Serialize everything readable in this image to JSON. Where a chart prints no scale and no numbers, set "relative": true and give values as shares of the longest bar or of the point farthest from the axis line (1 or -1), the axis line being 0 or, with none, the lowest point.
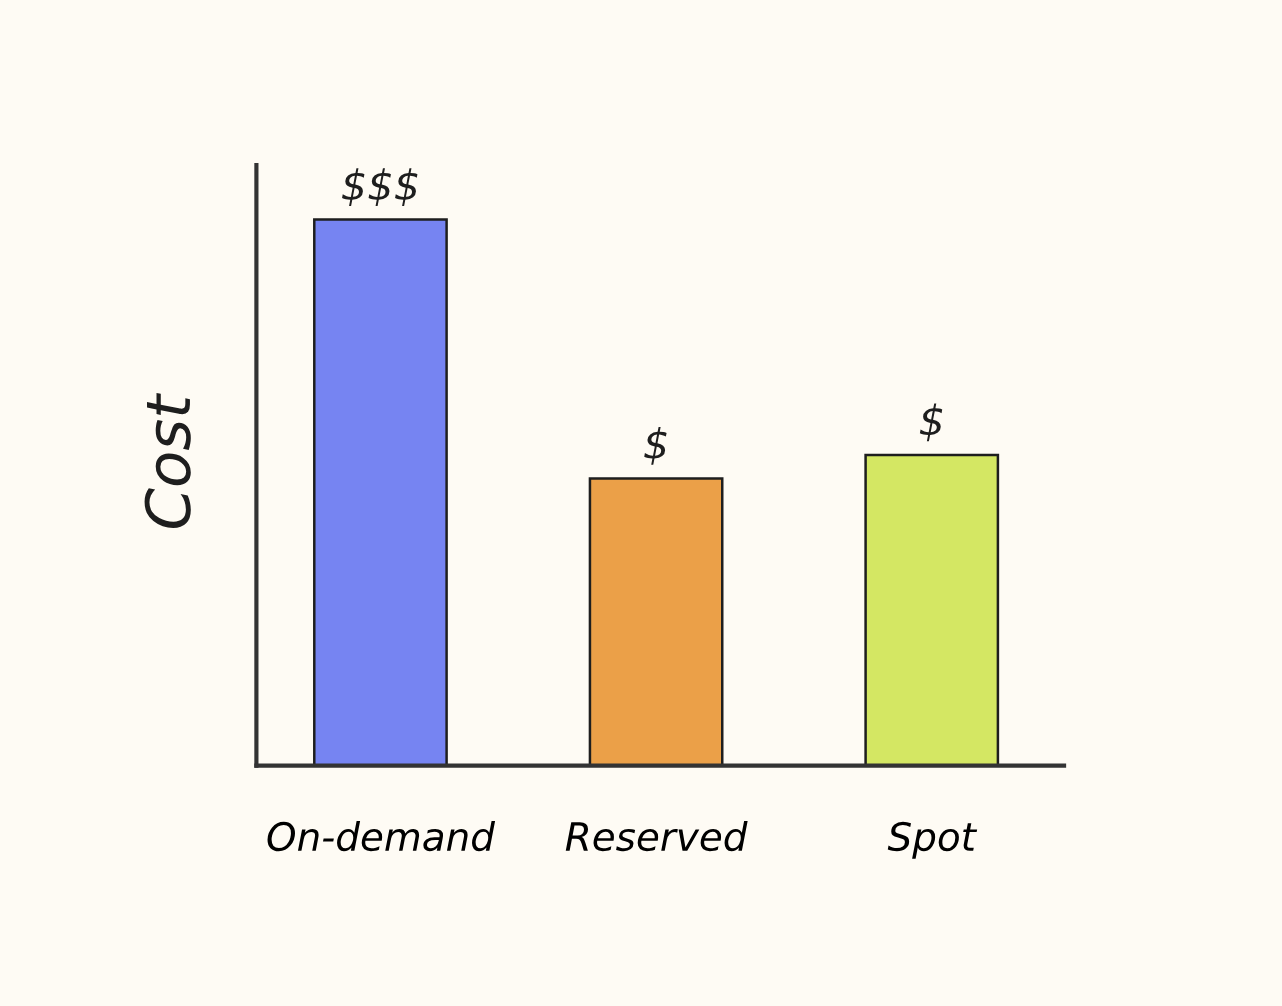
{
  "chart_data": {
    "type": "bar",
    "relative": true,
    "ylabel": "Cost",
    "categories": [
      "On-demand",
      "Reserved",
      "Spot"
    ],
    "values": [
      1,
      0.526,
      0.569
    ],
    "colors": [
      "#7684f2",
      "#eba048",
      "#d4e763"
    ],
    "annotations": [
      {
        "text": "$$$",
        "x": "On-demand",
        "y": 1
      },
      {
        "text": "$",
        "x": "Reserved",
        "y": 0.526
      },
      {
        "text": "$",
        "x": "Spot",
        "y": 0.569
      }
    ],
    "grid": false,
    "legend": false
  }
}
